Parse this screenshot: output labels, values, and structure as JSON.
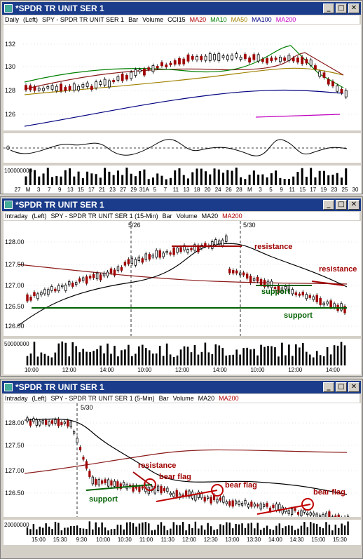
{
  "windows": [
    {
      "title": "*SPDR TR UNIT SER 1",
      "legend": [
        {
          "text": "Daily",
          "color": "#000000"
        },
        {
          "text": "(Left)",
          "color": "#000000"
        },
        {
          "text": "SPY - SPDR TR UNIT SER 1",
          "color": "#000000"
        },
        {
          "text": "Bar",
          "color": "#000000"
        },
        {
          "text": "Volume",
          "color": "#000000"
        },
        {
          "text": "CCI15",
          "color": "#000000"
        },
        {
          "text": "MA20",
          "color": "#b00000"
        },
        {
          "text": "MA10",
          "color": "#008000"
        },
        {
          "text": "MA50",
          "color": "#a08000"
        },
        {
          "text": "MA100",
          "color": "#000080"
        },
        {
          "text": "MA200",
          "color": "#c000c0"
        }
      ],
      "y_ticks": [
        "132",
        "130",
        "128",
        "126"
      ],
      "cci_tick": "0",
      "volume_tick": "100000000",
      "x_ticks": [
        "27",
        "M",
        "3",
        "7",
        "9",
        "13",
        "15",
        "17",
        "21",
        "23",
        "27",
        "29",
        "31A",
        "5",
        "7",
        "11",
        "13",
        "18",
        "20",
        "24",
        "26",
        "28",
        "M",
        "3",
        "5",
        "9",
        "11",
        "15",
        "17",
        "19",
        "23",
        "25",
        "30"
      ]
    },
    {
      "title": "*SPDR TR UNIT SER 1",
      "legend": [
        {
          "text": "Intraday",
          "color": "#000000"
        },
        {
          "text": "(Left)",
          "color": "#000000"
        },
        {
          "text": "SPY - SPDR TR UNIT SER 1 (15-Min)",
          "color": "#000000"
        },
        {
          "text": "Bar",
          "color": "#000000"
        },
        {
          "text": "Volume",
          "color": "#000000"
        },
        {
          "text": "MA20",
          "color": "#000000"
        },
        {
          "text": "MA200",
          "color": "#b00000"
        }
      ],
      "date_markers": [
        "5/26",
        "5/30"
      ],
      "y_ticks": [
        "128.00",
        "127.50",
        "127.00",
        "126.50",
        "126.00"
      ],
      "volume_tick": "50000000",
      "x_ticks": [
        "10:00",
        "12:00",
        "14:00",
        "10:00",
        "12:00",
        "14:00",
        "10:00",
        "12:00",
        "14:00"
      ],
      "annotations": [
        {
          "text": "resistance",
          "color": "#a00000"
        },
        {
          "text": "resistance",
          "color": "#a00000"
        },
        {
          "text": "support",
          "color": "#006000"
        },
        {
          "text": "support",
          "color": "#006000"
        }
      ]
    },
    {
      "title": "*SPDR TR UNIT SER 1",
      "legend": [
        {
          "text": "Intraday",
          "color": "#000000"
        },
        {
          "text": "(Left)",
          "color": "#000000"
        },
        {
          "text": "SPY - SPDR TR UNIT SER 1 (5-Min)",
          "color": "#000000"
        },
        {
          "text": "Bar",
          "color": "#000000"
        },
        {
          "text": "Volume",
          "color": "#000000"
        },
        {
          "text": "MA20",
          "color": "#000000"
        },
        {
          "text": "MA200",
          "color": "#b00000"
        }
      ],
      "date_marker": "5/30",
      "y_ticks": [
        "128.00",
        "127.50",
        "127.00",
        "126.50"
      ],
      "volume_tick": "20000000",
      "x_ticks": [
        "15:00",
        "15:30",
        "9:30",
        "10:00",
        "10:30",
        "11:00",
        "11:30",
        "12:00",
        "12:30",
        "13:00",
        "13:30",
        "14:00",
        "14:30",
        "15:00",
        "15:30"
      ],
      "annotations": [
        {
          "text": "resistance",
          "color": "#a00000"
        },
        {
          "text": "bear flag",
          "color": "#a00000"
        },
        {
          "text": "bear flag",
          "color": "#a00000"
        },
        {
          "text": "bear flag",
          "color": "#a00000"
        },
        {
          "text": "support",
          "color": "#006000"
        }
      ]
    }
  ]
}
